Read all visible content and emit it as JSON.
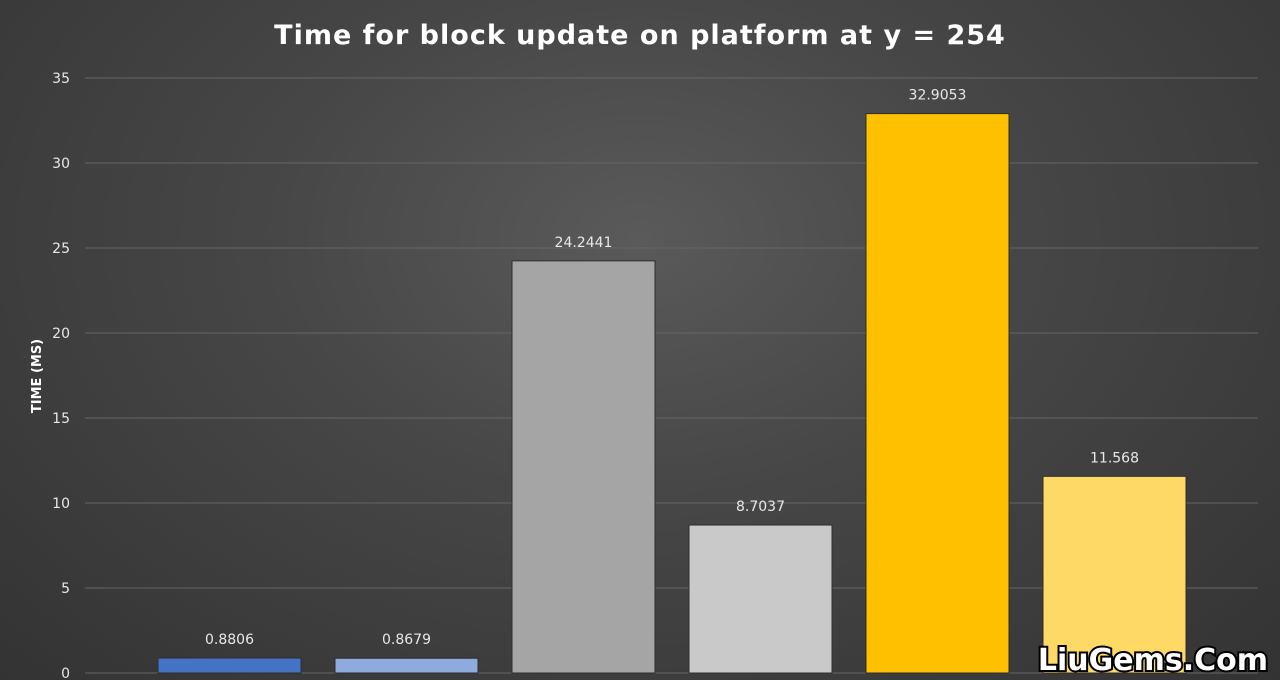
{
  "chart_data": {
    "type": "bar",
    "title": "Time for block update on platform at y = 254",
    "xlabel": "",
    "ylabel": "TIME (MS)",
    "ylim": [
      0,
      35
    ],
    "yticks": [
      0,
      5,
      10,
      15,
      20,
      25,
      30,
      35
    ],
    "grid": true,
    "legend": "none",
    "values": [
      0.8806,
      0.8679,
      24.2441,
      8.7037,
      32.9053,
      11.568
    ],
    "data_labels": [
      "0.8806",
      "0.8679",
      "24.2441",
      "8.7037",
      "32.9053",
      "11.568"
    ],
    "colors": [
      "#4472c4",
      "#8faadc",
      "#a5a5a5",
      "#c9c9c9",
      "#ffc000",
      "#ffd966"
    ]
  },
  "watermark": {
    "text": "LiuGems.Com"
  }
}
